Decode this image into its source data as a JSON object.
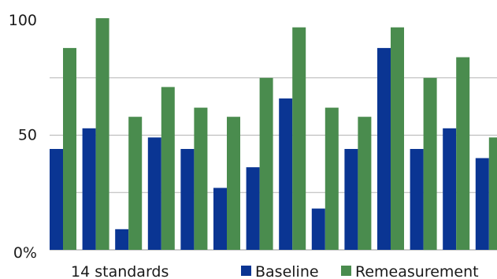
{
  "chart_data": {
    "type": "bar",
    "categories": [
      "",
      "",
      "",
      "",
      "",
      "",
      "",
      "",
      "",
      "",
      "",
      "",
      "",
      ""
    ],
    "series": [
      {
        "name": "Baseline",
        "color": "#0a3593",
        "values": [
          44,
          53,
          9,
          49,
          44,
          27,
          36,
          66,
          18,
          44,
          88,
          44,
          53,
          40
        ]
      },
      {
        "name": "Remeasurement",
        "color": "#4a8c4e",
        "values": [
          88,
          101,
          58,
          71,
          62,
          58,
          75,
          97,
          62,
          58,
          97,
          75,
          84,
          49
        ]
      }
    ],
    "ylim": [
      0,
      100
    ],
    "y_ticks": [
      {
        "value": 0,
        "label": "0%"
      },
      {
        "value": 50,
        "label": "50"
      },
      {
        "value": 100,
        "label": "100"
      }
    ],
    "gridlines": [
      25,
      50,
      75
    ],
    "grid": true,
    "caption": "14 standards",
    "legend_position": "bottom",
    "title": "",
    "xlabel": "",
    "ylabel": ""
  }
}
